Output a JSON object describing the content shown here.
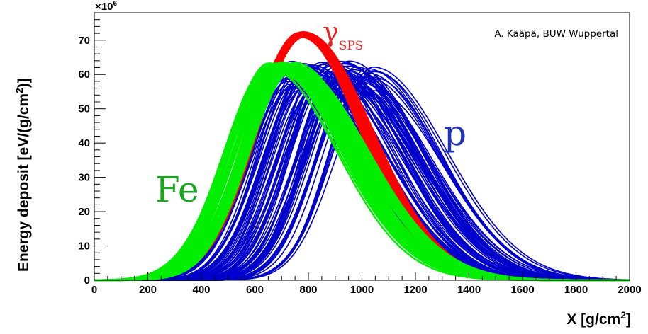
{
  "chart_data": {
    "type": "line",
    "xlabel": "X [g/cm",
    "xlabel_sup": "2",
    "xlabel_end": "]",
    "ylabel": "Energy deposit [eV/(g/cm",
    "ylabel_sup": "2",
    "ylabel_end": ")]",
    "y_multiplier": "×10",
    "y_multiplier_exp": "6",
    "xlim": [
      0,
      2000
    ],
    "ylim": [
      0,
      78
    ],
    "x_ticks": [
      0,
      200,
      400,
      600,
      800,
      1000,
      1200,
      1400,
      1600,
      1800,
      2000
    ],
    "y_ticks": [
      0,
      10,
      20,
      30,
      40,
      50,
      60,
      70
    ],
    "credit": "A. Kääpä, BUW Wuppertal",
    "grid": false,
    "series": [
      {
        "name": "Fe",
        "color": "#00ee00",
        "count": 60,
        "xmax_range": [
          650,
          750
        ],
        "peak_range": [
          61,
          63.5
        ],
        "sigma_left": 165,
        "sigma_right": 270
      },
      {
        "name": "p",
        "color": "#0000cc",
        "count": 90,
        "xmax_range": [
          700,
          1050
        ],
        "peak_range": [
          55,
          64
        ],
        "sigma_left": 150,
        "sigma_right": 265
      },
      {
        "name": "γ",
        "label_sub": "SPS",
        "color": "#ff0000",
        "count": 40,
        "xmax_range": [
          765,
          790
        ],
        "peak_range": [
          71,
          72.5
        ],
        "sigma_left": 185,
        "sigma_right": 240
      }
    ],
    "draw_order": [
      "p",
      "γ",
      "Fe"
    ]
  }
}
